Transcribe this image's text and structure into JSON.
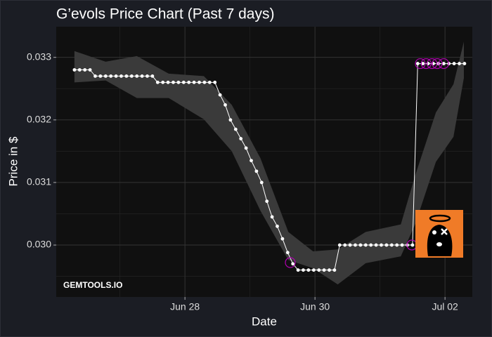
{
  "chart_data": {
    "type": "line",
    "title": "G’evols Price Chart (Past 7 days)",
    "x_label": "Date",
    "y_label": "Price in $",
    "annotation": "GEMTOOLS.IO",
    "xlim": [
      26.02,
      32.42
    ],
    "ylim": [
      0.02917,
      0.03349
    ],
    "xticks": [
      {
        "value": 28,
        "label": "Jun 28"
      },
      {
        "value": 30,
        "label": "Jun 30"
      },
      {
        "value": 32,
        "label": "Jul 02"
      }
    ],
    "yticks": [
      {
        "value": 0.03,
        "label": "0.030"
      },
      0.031,
      0.032,
      0.033
    ],
    "minor_xticks": [
      27,
      29,
      31
    ],
    "minor_yticks": [
      0.0295,
      0.0305,
      0.0315,
      0.0325
    ],
    "grid": true,
    "x": [
      26.3,
      26.38,
      26.46,
      26.54,
      26.62,
      26.7,
      26.78,
      26.86,
      26.94,
      27.02,
      27.1,
      27.18,
      27.26,
      27.34,
      27.42,
      27.5,
      27.58,
      27.66,
      27.74,
      27.82,
      27.9,
      27.98,
      28.06,
      28.14,
      28.22,
      28.3,
      28.38,
      28.46,
      28.54,
      28.62,
      28.7,
      28.78,
      28.86,
      28.94,
      29.02,
      29.1,
      29.18,
      29.26,
      29.34,
      29.42,
      29.5,
      29.58,
      29.66,
      29.74,
      29.82,
      29.9,
      29.98,
      30.06,
      30.14,
      30.22,
      30.3,
      30.38,
      30.46,
      30.54,
      30.62,
      30.7,
      30.78,
      30.86,
      30.94,
      31.02,
      31.1,
      31.18,
      31.26,
      31.34,
      31.42,
      31.5,
      31.58,
      31.66,
      31.74,
      31.82,
      31.9,
      31.98,
      32.06,
      32.14,
      32.22,
      32.3
    ],
    "series": [
      {
        "color": "#ffffff",
        "values": [
          0.0328,
          0.0328,
          0.0328,
          0.0328,
          0.0327,
          0.0327,
          0.0327,
          0.0327,
          0.0327,
          0.0327,
          0.0327,
          0.0327,
          0.0327,
          0.0327,
          0.0327,
          0.0327,
          0.0326,
          0.0326,
          0.0326,
          0.0326,
          0.0326,
          0.0326,
          0.0326,
          0.0326,
          0.0326,
          0.0326,
          0.0326,
          0.0326,
          0.0324,
          0.03224,
          0.032,
          0.03185,
          0.0317,
          0.03155,
          0.03135,
          0.03118,
          0.031,
          0.0307,
          0.03045,
          0.0303,
          0.0301,
          0.02988,
          0.0297,
          0.0296,
          0.0296,
          0.0296,
          0.0296,
          0.0296,
          0.0296,
          0.0296,
          0.0296,
          0.03,
          0.03,
          0.03,
          0.03,
          0.03,
          0.03,
          0.03,
          0.03,
          0.03,
          0.03,
          0.03,
          0.03,
          0.03,
          0.03,
          0.03,
          0.0329,
          0.0329,
          0.0329,
          0.0329,
          0.0329,
          0.0329,
          0.0329,
          0.0329,
          0.0329,
          0.0329
        ]
      }
    ],
    "band": {
      "color": "#3a3a3a",
      "x": [
        26.3,
        26.78,
        27.26,
        27.75,
        28.29,
        28.72,
        29.16,
        29.59,
        29.97,
        30.35,
        30.78,
        31.32,
        31.54,
        31.86,
        32.13,
        32.29
      ],
      "upper": [
        0.0331,
        0.03293,
        0.03302,
        0.03274,
        0.0327,
        0.03224,
        0.03139,
        0.03021,
        0.0299,
        0.02993,
        0.03021,
        0.03033,
        0.03111,
        0.03212,
        0.03257,
        0.03325
      ],
      "lower": [
        0.0326,
        0.03263,
        0.03235,
        0.03235,
        0.03201,
        0.0315,
        0.03055,
        0.02976,
        0.02963,
        0.02937,
        0.02971,
        0.02982,
        0.03033,
        0.03133,
        0.03173,
        0.03267
      ]
    },
    "highlights": {
      "color": "#b000b0",
      "x": [
        29.62,
        31.49,
        31.62,
        31.71,
        31.8,
        31.88,
        31.98
      ],
      "values": [
        0.02972,
        0.03,
        0.0329,
        0.0329,
        0.0329,
        0.0329,
        0.0329
      ]
    }
  }
}
